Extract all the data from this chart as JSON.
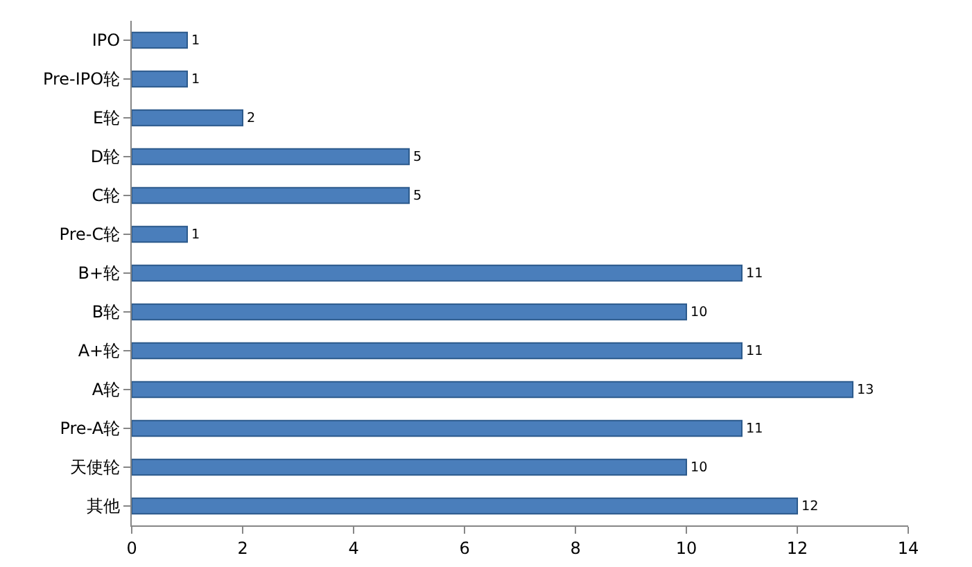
{
  "chart_data": {
    "type": "bar",
    "orientation": "horizontal",
    "categories": [
      "IPO",
      "Pre-IPO轮",
      "E轮",
      "D轮",
      "C轮",
      "Pre-C轮",
      "B+轮",
      "B轮",
      "A+轮",
      "A轮",
      "Pre-A轮",
      "天使轮",
      "其他"
    ],
    "values": [
      1,
      1,
      2,
      5,
      5,
      1,
      11,
      10,
      11,
      13,
      11,
      10,
      12
    ],
    "color": "#4a7ebb",
    "xlim": [
      0,
      14
    ],
    "xticks": [
      0,
      2,
      4,
      6,
      8,
      10,
      12,
      14
    ],
    "grid": false,
    "data_labels": true
  }
}
